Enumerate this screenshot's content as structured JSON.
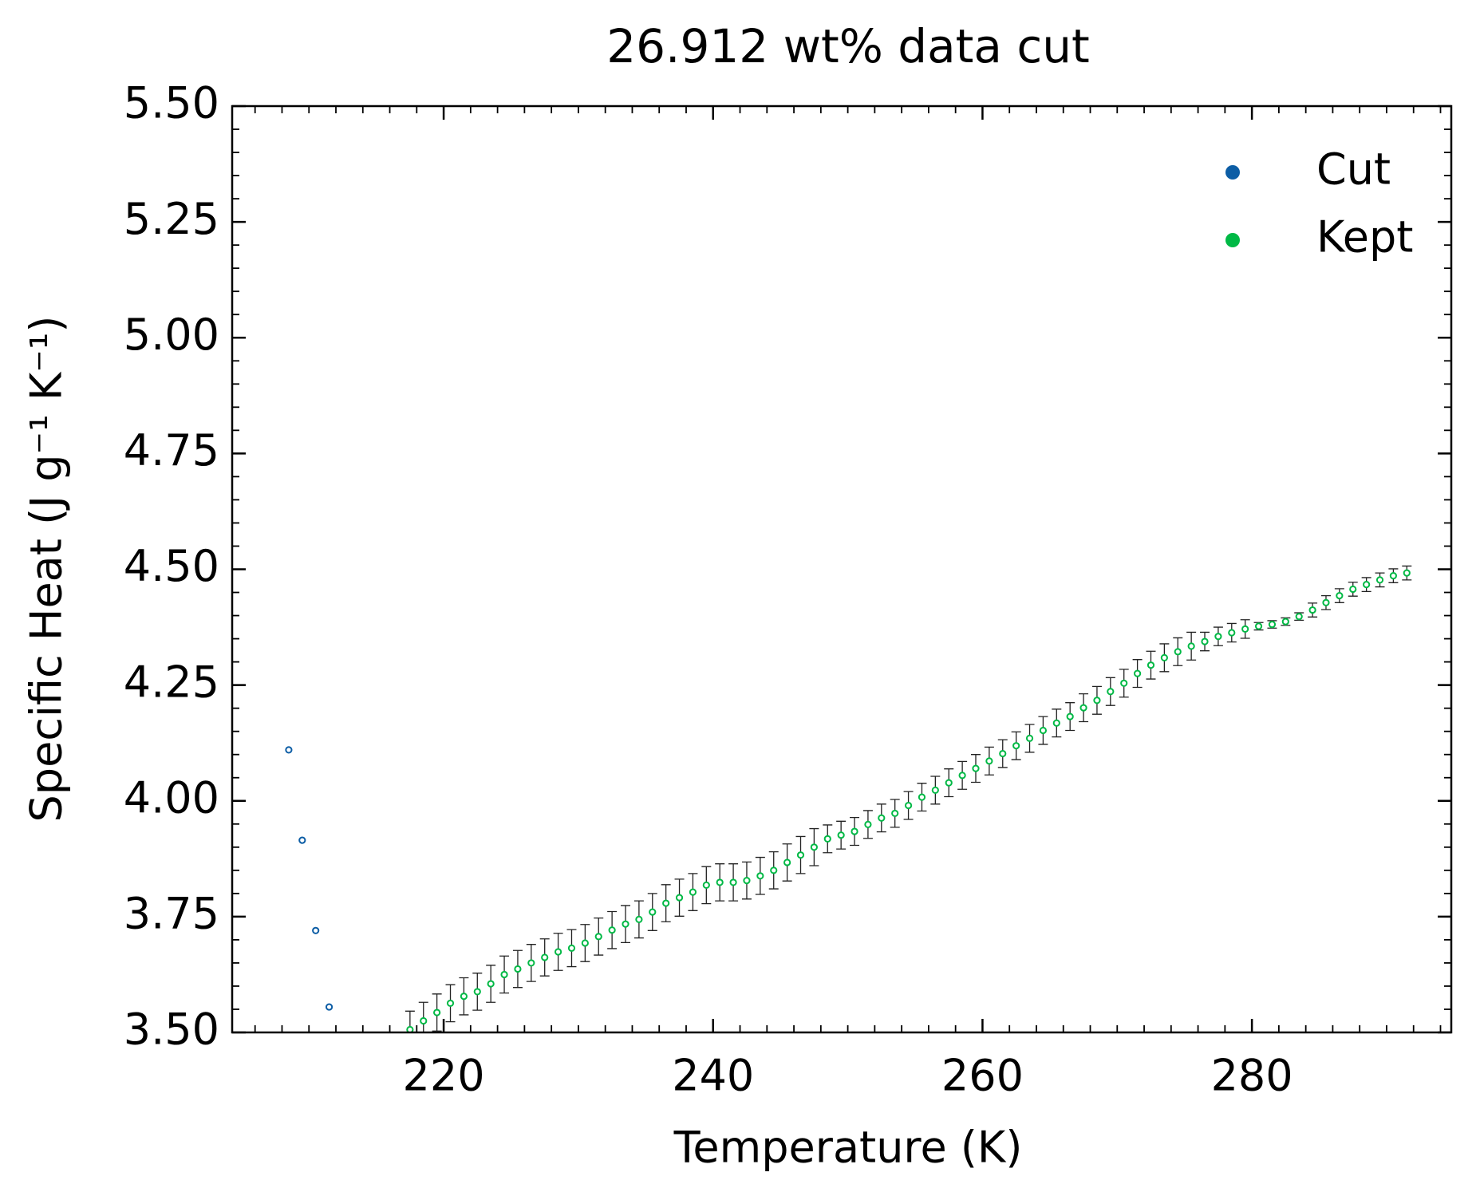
{
  "chart_data": {
    "type": "errorbar-scatter",
    "title": "26.912 wt% data cut",
    "x_label": "Temperature (K)",
    "y_label": "Specific Heat (J g⁻¹ K⁻¹)",
    "xlim": [
      204.3,
      294.8
    ],
    "ylim": [
      3.5,
      5.5
    ],
    "xticks": [
      220,
      240,
      260,
      280
    ],
    "yticks": [
      {
        "value": 3.5,
        "label": "3.50"
      },
      {
        "value": 3.75,
        "label": "3.75"
      },
      {
        "value": 4.0,
        "label": "4.00"
      },
      {
        "value": 4.25,
        "label": "4.25"
      },
      {
        "value": 4.5,
        "label": "4.50"
      },
      {
        "value": 4.75,
        "label": "4.75"
      },
      {
        "value": 5.0,
        "label": "5.00"
      },
      {
        "value": 5.25,
        "label": "5.25"
      },
      {
        "value": 5.5,
        "label": "5.50"
      }
    ],
    "minor_ticks": true,
    "legend": "upper right",
    "series": [
      {
        "name": "Cut",
        "color": "#0C5DA5",
        "x": [
          208.5,
          209.5,
          210.5,
          211.5
        ],
        "values": [
          4.11,
          3.915,
          3.72,
          3.555
        ]
      },
      {
        "name": "Kept",
        "color": "#00B945",
        "error_color": "#222222",
        "x": [
          217.5,
          218.5,
          219.5,
          220.5,
          221.5,
          222.5,
          223.5,
          224.5,
          225.5,
          226.5,
          227.5,
          228.5,
          229.5,
          230.5,
          231.5,
          232.5,
          233.5,
          234.5,
          235.5,
          236.5,
          237.5,
          238.5,
          239.5,
          240.5,
          241.5,
          242.5,
          243.5,
          244.5,
          245.5,
          246.5,
          247.5,
          248.5,
          249.5,
          250.5,
          251.5,
          252.5,
          253.5,
          254.5,
          255.5,
          256.5,
          257.5,
          258.5,
          259.5,
          260.5,
          261.5,
          262.5,
          263.5,
          264.5,
          265.5,
          266.5,
          267.5,
          268.5,
          269.5,
          270.5,
          271.5,
          272.5,
          273.5,
          274.5,
          275.5,
          276.5,
          277.5,
          278.5,
          279.5,
          280.5,
          281.5,
          282.5,
          283.5,
          284.5,
          285.5,
          286.5,
          287.5,
          288.5,
          289.5,
          290.5,
          291.5
        ],
        "values": [
          3.506,
          3.525,
          3.543,
          3.563,
          3.578,
          3.588,
          3.605,
          3.625,
          3.637,
          3.65,
          3.662,
          3.674,
          3.682,
          3.693,
          3.707,
          3.721,
          3.734,
          3.744,
          3.76,
          3.779,
          3.791,
          3.803,
          3.818,
          3.824,
          3.824,
          3.828,
          3.838,
          3.85,
          3.867,
          3.883,
          3.9,
          3.918,
          3.926,
          3.934,
          3.949,
          3.963,
          3.973,
          3.99,
          4.008,
          4.023,
          4.039,
          4.055,
          4.07,
          4.086,
          4.102,
          4.119,
          4.135,
          4.152,
          4.168,
          4.182,
          4.201,
          4.217,
          4.236,
          4.254,
          4.275,
          4.293,
          4.309,
          4.322,
          4.334,
          4.344,
          4.355,
          4.363,
          4.371,
          4.377,
          4.381,
          4.387,
          4.398,
          4.412,
          4.428,
          4.443,
          4.457,
          4.467,
          4.477,
          4.486,
          4.492
        ],
        "errors": [
          0.04,
          0.04,
          0.04,
          0.04,
          0.04,
          0.04,
          0.04,
          0.04,
          0.04,
          0.04,
          0.04,
          0.04,
          0.04,
          0.04,
          0.04,
          0.04,
          0.04,
          0.04,
          0.04,
          0.04,
          0.04,
          0.04,
          0.04,
          0.04,
          0.04,
          0.04,
          0.04,
          0.04,
          0.04,
          0.04,
          0.04,
          0.03,
          0.03,
          0.03,
          0.03,
          0.03,
          0.03,
          0.03,
          0.03,
          0.03,
          0.03,
          0.03,
          0.03,
          0.03,
          0.03,
          0.03,
          0.03,
          0.03,
          0.03,
          0.03,
          0.03,
          0.03,
          0.03,
          0.03,
          0.03,
          0.03,
          0.03,
          0.03,
          0.03,
          0.02,
          0.02,
          0.02,
          0.02,
          0.008,
          0.008,
          0.008,
          0.008,
          0.015,
          0.015,
          0.015,
          0.015,
          0.015,
          0.015,
          0.015,
          0.015
        ]
      }
    ]
  }
}
